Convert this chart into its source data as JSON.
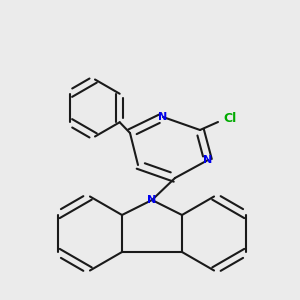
{
  "background_color": "#ebebeb",
  "bond_color": "#1a1a1a",
  "nitrogen_color": "#0000ee",
  "chlorine_color": "#00aa00",
  "bond_lw": 1.5,
  "figsize": [
    3.0,
    3.0
  ],
  "dpi": 100,
  "cl_label": "Cl",
  "n_label": "N"
}
